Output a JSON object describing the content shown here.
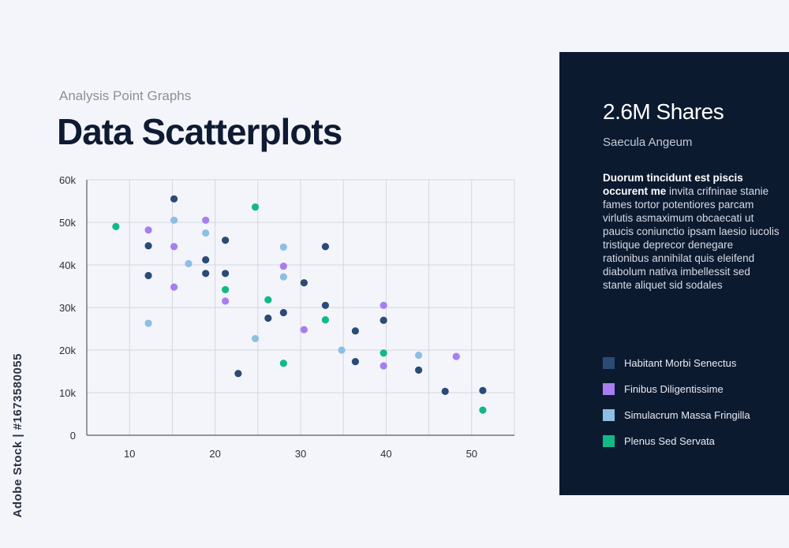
{
  "header": {
    "subtitle": "Analysis Point Graphs",
    "title": "Data Scatterplots"
  },
  "panel": {
    "headline": "2.6M Shares",
    "subhead": "Saecula Angeum",
    "para_bold": "Duorum tincidunt est piscis occurent me",
    "para_rest": " invita crifninae stanie fames tortor potentiores parcam virlutis asmaximum obcaecati ut paucis coniunctio ipsam laesio iucolis tristique deprecor denegare rationibus annihilat quis eleifend diabolum nativa imbellessit sed stante aliquet sid sodales"
  },
  "watermark": "Adobe Stock | #1673580055",
  "colors": {
    "background": "#f3f5fa",
    "panel": "#0c1a30",
    "grid": "#d3d6dc"
  },
  "chart_data": {
    "type": "scatter",
    "xlim": [
      5,
      55
    ],
    "ylim": [
      0,
      60000
    ],
    "x_ticks": [
      10,
      20,
      30,
      40,
      50
    ],
    "y_ticks": [
      {
        "value": 0,
        "label": "0"
      },
      {
        "value": 10000,
        "label": "10k"
      },
      {
        "value": 20000,
        "label": "20k"
      },
      {
        "value": 30000,
        "label": "30k"
      },
      {
        "value": 40000,
        "label": "40k"
      },
      {
        "value": 50000,
        "label": "50k"
      },
      {
        "value": 60000,
        "label": "60k"
      }
    ],
    "grid": true,
    "legend_position": "right",
    "series": [
      {
        "name": "Habitant Morbi Senectus",
        "color": "#2b4b76",
        "points": [
          [
            12.2,
            44500
          ],
          [
            12.2,
            37500
          ],
          [
            15.2,
            55500
          ],
          [
            18.9,
            41200
          ],
          [
            18.9,
            38000
          ],
          [
            21.2,
            45800
          ],
          [
            21.2,
            38000
          ],
          [
            22.7,
            14500
          ],
          [
            26.2,
            27500
          ],
          [
            28.0,
            28800
          ],
          [
            30.4,
            35800
          ],
          [
            32.9,
            44300
          ],
          [
            32.9,
            30500
          ],
          [
            36.4,
            24500
          ],
          [
            36.4,
            17300
          ],
          [
            39.7,
            27000
          ],
          [
            43.8,
            15300
          ],
          [
            46.9,
            10300
          ],
          [
            51.3,
            10500
          ]
        ]
      },
      {
        "name": "Finibus Diligentissime",
        "color": "#a77ef0",
        "points": [
          [
            12.2,
            48200
          ],
          [
            15.2,
            44300
          ],
          [
            15.2,
            34800
          ],
          [
            18.9,
            50500
          ],
          [
            21.2,
            31500
          ],
          [
            28.0,
            39700
          ],
          [
            30.4,
            24800
          ],
          [
            39.7,
            30500
          ],
          [
            39.7,
            16300
          ],
          [
            48.2,
            18500
          ]
        ]
      },
      {
        "name": "Simulacrum Massa Fringilla",
        "color": "#8dbee3",
        "points": [
          [
            12.2,
            26300
          ],
          [
            15.2,
            50500
          ],
          [
            16.9,
            40300
          ],
          [
            18.9,
            47500
          ],
          [
            24.7,
            22700
          ],
          [
            28.0,
            44200
          ],
          [
            28.0,
            37200
          ],
          [
            34.8,
            20000
          ],
          [
            43.8,
            18800
          ]
        ]
      },
      {
        "name": "Plenus Sed Servata",
        "color": "#12b885",
        "points": [
          [
            8.4,
            49000
          ],
          [
            21.2,
            34200
          ],
          [
            24.7,
            53600
          ],
          [
            26.2,
            31800
          ],
          [
            28.0,
            16900
          ],
          [
            32.9,
            27100
          ],
          [
            39.7,
            19300
          ],
          [
            51.3,
            5900
          ]
        ]
      }
    ]
  }
}
